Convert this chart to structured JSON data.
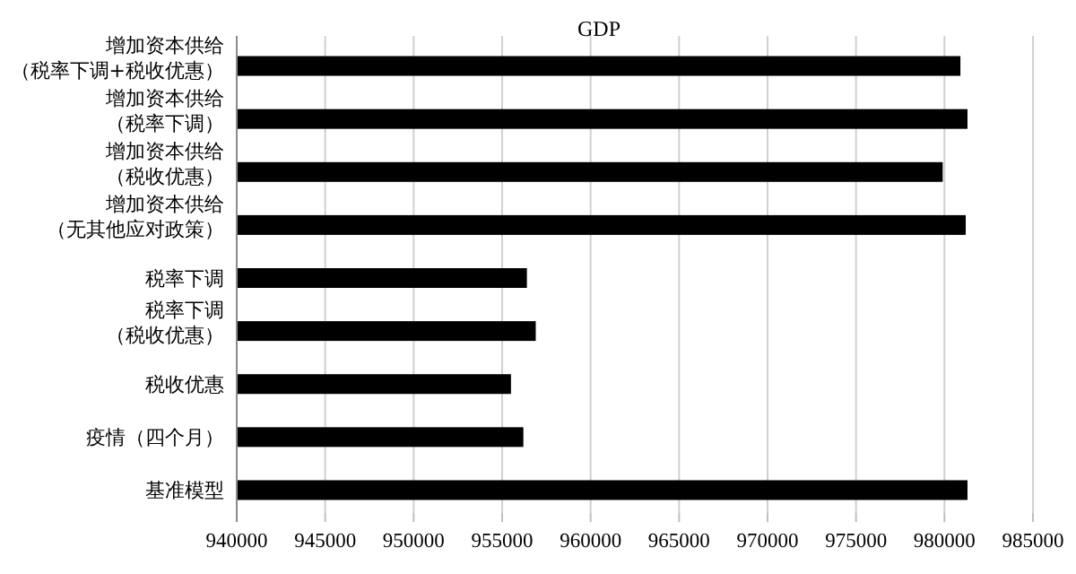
{
  "chart_data": {
    "type": "bar",
    "orientation": "horizontal",
    "title": "GDP",
    "categories": [
      "增加资本供给（税率下调+税收优惠）",
      "增加资本供给（税率下调）",
      "增加资本供给（税收优惠）",
      "增加资本供给（无其他应对政策）",
      "税率下调",
      "税率下调（税收优惠）",
      "税收优惠",
      "疫情（四个月）",
      "基准模型"
    ],
    "values": [
      980900,
      981300,
      979900,
      981200,
      956400,
      956900,
      955500,
      956200,
      981300
    ],
    "color": "#000000",
    "xlim": [
      940000,
      985000
    ],
    "xticks": [
      940000,
      945000,
      950000,
      955000,
      960000,
      965000,
      970000,
      975000,
      980000,
      985000
    ],
    "grid": "x"
  }
}
